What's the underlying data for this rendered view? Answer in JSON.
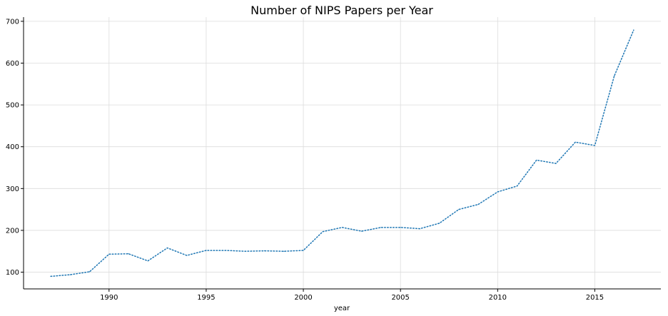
{
  "chart_data": {
    "type": "line",
    "title": "Number of NIPS Papers per Year",
    "xlabel": "year",
    "ylabel": "",
    "xlim": [
      1985.6,
      2018.4
    ],
    "ylim": [
      60,
      710
    ],
    "xticks": [
      1990,
      1995,
      2000,
      2005,
      2010,
      2015
    ],
    "yticks": [
      100,
      200,
      300,
      400,
      500,
      600,
      700
    ],
    "grid": true,
    "line_style": "dotted",
    "line_color": "#1f77b4",
    "x": [
      1987,
      1988,
      1989,
      1990,
      1991,
      1992,
      1993,
      1994,
      1995,
      1996,
      1997,
      1998,
      1999,
      2000,
      2001,
      2002,
      2003,
      2004,
      2005,
      2006,
      2007,
      2008,
      2009,
      2010,
      2011,
      2012,
      2013,
      2014,
      2015,
      2016,
      2017
    ],
    "values": [
      90,
      94,
      101,
      143,
      144,
      127,
      158,
      140,
      152,
      152,
      150,
      151,
      150,
      152,
      197,
      207,
      198,
      207,
      207,
      204,
      217,
      250,
      262,
      292,
      306,
      368,
      360,
      411,
      403,
      569,
      679
    ]
  }
}
